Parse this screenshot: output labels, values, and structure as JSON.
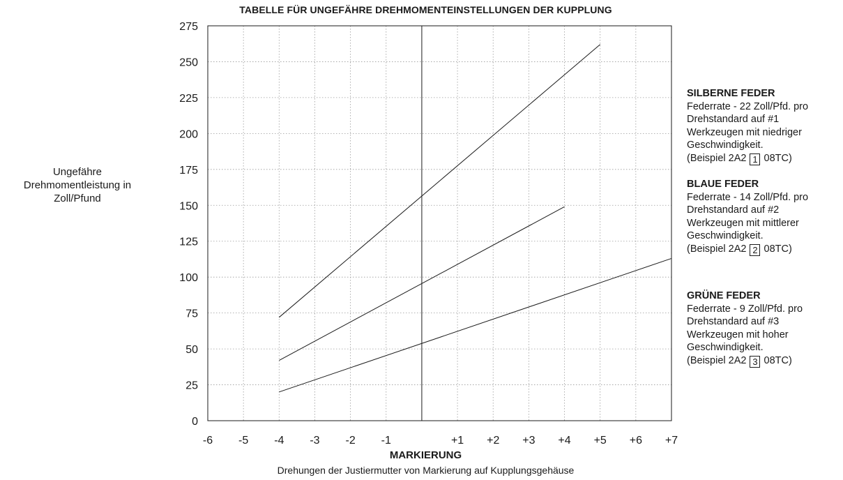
{
  "chart_data": {
    "type": "line",
    "title": "TABELLE FÜR UNGEFÄHRE DREHMOMENTEINSTELLUNGEN DER KUPPLUNG",
    "ylabel_lines": [
      "Ungefähre",
      "Drehmomentleistung in",
      "Zoll/Pfund"
    ],
    "xlabel": "MARKIERUNG",
    "xsublabel": "Drehungen der Justiermutter von Markierung auf Kupplungsgehäuse",
    "x_ticks": [
      -6,
      -5,
      -4,
      -3,
      -2,
      -1,
      1,
      2,
      3,
      4,
      5,
      6,
      7
    ],
    "x_tick_labels": [
      "-6",
      "-5",
      "-4",
      "-3",
      "-2",
      "-1",
      "+1",
      "+2",
      "+3",
      "+4",
      "+5",
      "+6",
      "+7"
    ],
    "xlim": [
      -6,
      7
    ],
    "y_ticks": [
      0,
      25,
      50,
      75,
      100,
      125,
      150,
      175,
      200,
      225,
      250,
      275
    ],
    "ylim": [
      0,
      275
    ],
    "grid": true,
    "series": [
      {
        "x": [
          -4,
          5
        ],
        "y": [
          72,
          262
        ]
      },
      {
        "x": [
          -4,
          4
        ],
        "y": [
          42,
          149
        ]
      },
      {
        "x": [
          -4,
          7
        ],
        "y": [
          20,
          113
        ]
      }
    ]
  },
  "legend": [
    {
      "heading": "SILBERNE FEDER",
      "lines": [
        "Federrate - 22 Zoll/Pfd. pro",
        "Drehstandard auf #1",
        "Werkzeugen mit niedriger",
        "Geschwindigkeit."
      ],
      "example_prefix": "(Beispiel 2A2",
      "example_box": "1",
      "example_suffix": "08TC)"
    },
    {
      "heading": "BLAUE FEDER",
      "lines": [
        "Federrate - 14 Zoll/Pfd. pro",
        "Drehstandard auf #2",
        "Werkzeugen mit mittlerer",
        "Geschwindigkeit."
      ],
      "example_prefix": "(Beispiel 2A2",
      "example_box": "2",
      "example_suffix": "08TC)"
    },
    {
      "heading": "GRÜNE FEDER",
      "lines": [
        "Federrate - 9 Zoll/Pfd. pro",
        "Drehstandard auf #3",
        "Werkzeugen mit hoher",
        "Geschwindigkeit."
      ],
      "example_prefix": "(Beispiel 2A2",
      "example_box": "3",
      "example_suffix": "08TC)"
    }
  ]
}
